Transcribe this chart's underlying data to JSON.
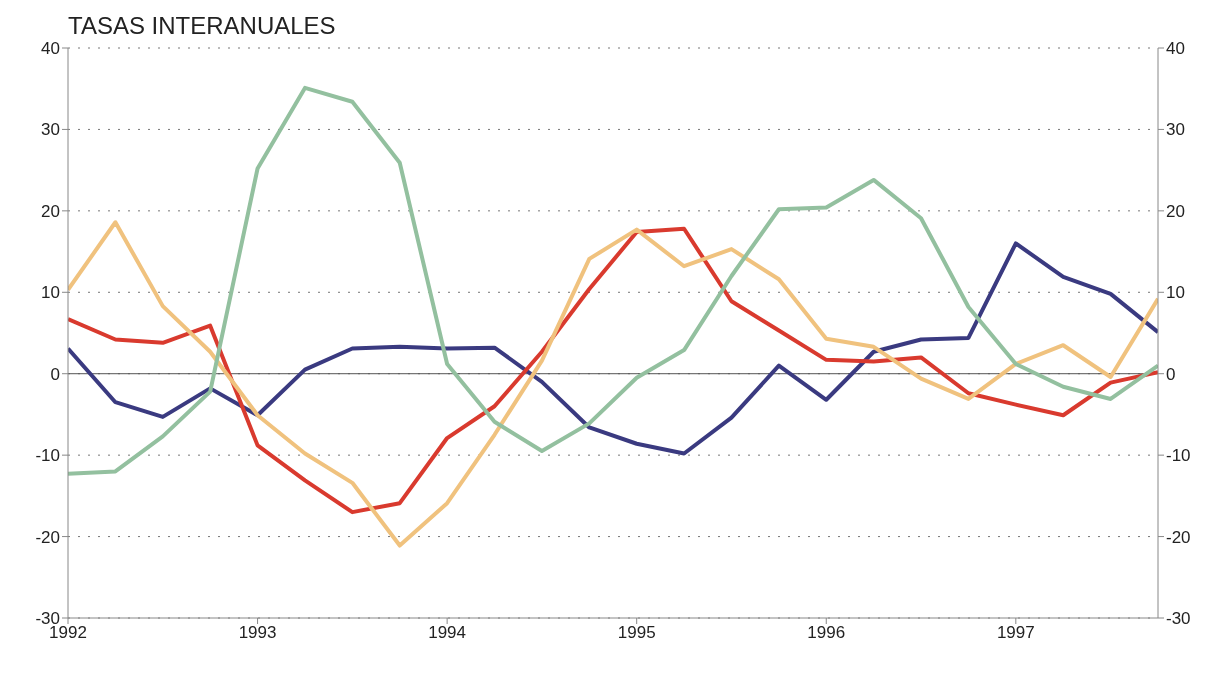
{
  "chart_data": {
    "type": "line",
    "title": "TASAS INTERANUALES",
    "x": [
      1992,
      1992.25,
      1992.5,
      1992.75,
      1993,
      1993.25,
      1993.5,
      1993.75,
      1994,
      1994.25,
      1994.5,
      1994.75,
      1995,
      1995.25,
      1995.5,
      1995.75,
      1996,
      1996.25,
      1996.5,
      1996.75,
      1997,
      1997.25,
      1997.5,
      1997.75
    ],
    "series": [
      {
        "color": "#3a3a80",
        "values": [
          3.1,
          -3.5,
          -5.3,
          -1.8,
          -5.1,
          0.5,
          3.1,
          3.3,
          3.1,
          3.2,
          -1,
          -6.6,
          -8.6,
          -9.8,
          -5.4,
          1,
          -3.2,
          2.7,
          4.2,
          4.4,
          16,
          11.9,
          9.8,
          5.1
        ]
      },
      {
        "color": "#d93a2e",
        "values": [
          6.7,
          4.2,
          3.8,
          5.9,
          -8.8,
          -13.1,
          -17,
          -15.9,
          -7.9,
          -4,
          2.7,
          10.4,
          17.4,
          17.8,
          8.9,
          5.3,
          1.7,
          1.5,
          2,
          -2.4,
          -3.8,
          -5.1,
          -1.1,
          0.2
        ]
      },
      {
        "color": "#f0c27e",
        "values": [
          10.3,
          18.6,
          8.3,
          2.7,
          -5.1,
          -9.8,
          -13.4,
          -21.1,
          -15.9,
          -7.5,
          1.6,
          14.1,
          17.7,
          13.2,
          15.3,
          11.6,
          4.3,
          3.3,
          -0.6,
          -3.1,
          1.2,
          3.5,
          -0.4,
          9.2
        ]
      },
      {
        "color": "#93c09f",
        "values": [
          -12.3,
          -12,
          -7.7,
          -2.2,
          25.2,
          35.1,
          33.4,
          25.9,
          1.2,
          -5.9,
          -9.5,
          -6.1,
          -0.5,
          2.9,
          12,
          20.2,
          20.4,
          23.8,
          19.1,
          8.2,
          1.2,
          -1.6,
          -3.1,
          1
        ]
      }
    ],
    "xlim": [
      1992,
      1997.75
    ],
    "xticks": [
      1992,
      1993,
      1994,
      1995,
      1996,
      1997
    ],
    "ylim": [
      -30,
      40
    ],
    "yticks": [
      -30,
      -20,
      -10,
      0,
      10,
      20,
      30,
      40
    ],
    "y2lim": [
      -30,
      40
    ],
    "y2ticks": [
      -30,
      -20,
      -10,
      0,
      10,
      20,
      30,
      40
    ],
    "grid": "y",
    "marker": "none",
    "line_style": "solid",
    "legend": false,
    "ref_lines": [
      {
        "axis": "y",
        "value": 0,
        "color": "#555555",
        "line_style": "solid"
      }
    ]
  }
}
